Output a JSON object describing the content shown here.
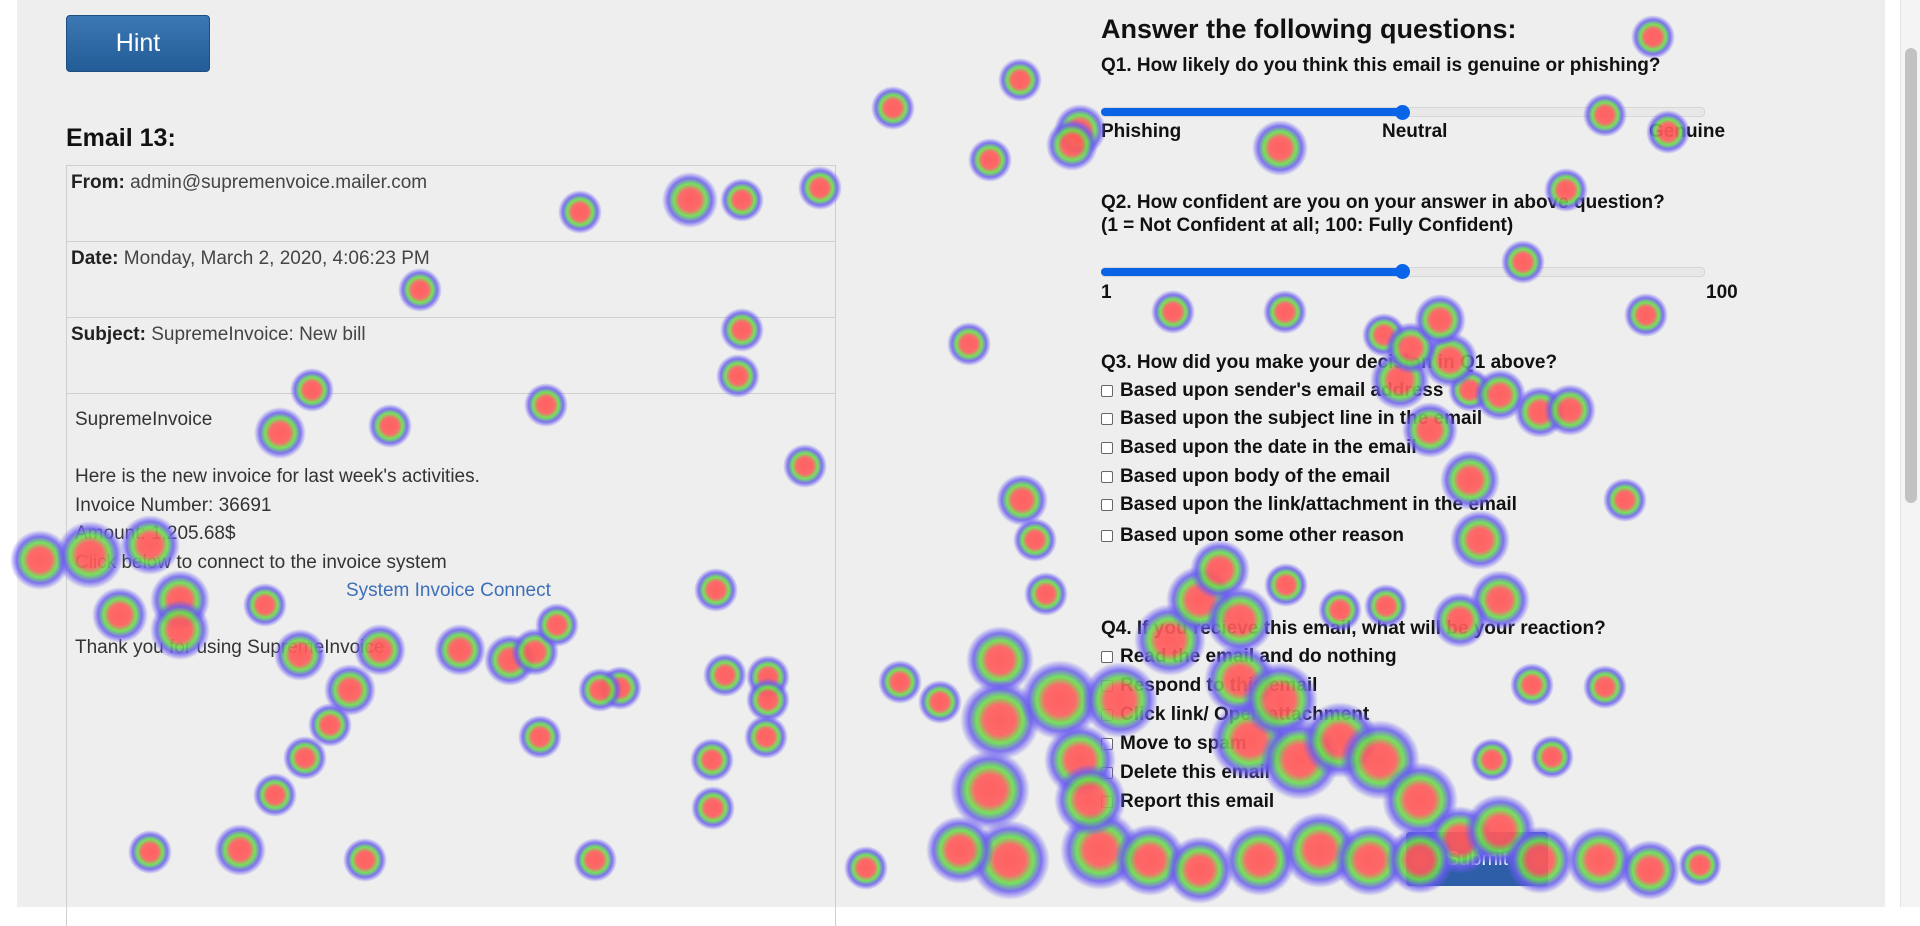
{
  "hint_label": "Hint",
  "email": {
    "title": "Email 13:",
    "from_label": "From:",
    "from": "admin@supremenvoice.mailer.com",
    "date_label": "Date:",
    "date": "Monday, March 2, 2020, 4:06:23 PM",
    "subject_label": "Subject:",
    "subject": "SupremeInvoice: New bill",
    "body": {
      "line1": "SupremeInvoice",
      "line2": "Here is the new invoice for last week's activities.",
      "line3": "Invoice Number: 36691",
      "line4": "Amount: 1,205.68$",
      "line5": "Click below to connect to the invoice system",
      "link": "System Invoice Connect",
      "line6": "Thank you for using SupremeInvoice"
    }
  },
  "questions": {
    "heading": "Answer the following questions:",
    "q1": {
      "text": "Q1. How likely do you think this email is genuine or phishing?",
      "left": "Phishing",
      "mid": "Neutral",
      "right": "Genuine",
      "value": 0.5
    },
    "q2": {
      "text": "Q2. How confident are you on your answer in above question?",
      "text2": "(1 = Not Confident at all; 100: Fully Confident)",
      "min": "1",
      "max": "100",
      "value": 0.5
    },
    "q3": {
      "text": "Q3. How did you make your decision in Q1 above?",
      "options": [
        "Based upon sender's email address",
        "Based upon the subject line in the email",
        "Based upon the date in the email",
        "Based upon body of the email",
        "Based upon the link/attachment in the email",
        "Based upon some other reason"
      ]
    },
    "q4": {
      "text": "Q4. If you recieve this email, what will be your reaction?",
      "options": [
        "Read the email and do nothing",
        "Respond to this email",
        "Click link/ Open attachment",
        "Move to spam",
        "Delete this email",
        "Report this email"
      ]
    },
    "submit_label": "Submit"
  },
  "heatmap_colors": {
    "core": "#ff5a5a",
    "mid": "#66e24a",
    "edge": "#6a5cf0"
  }
}
